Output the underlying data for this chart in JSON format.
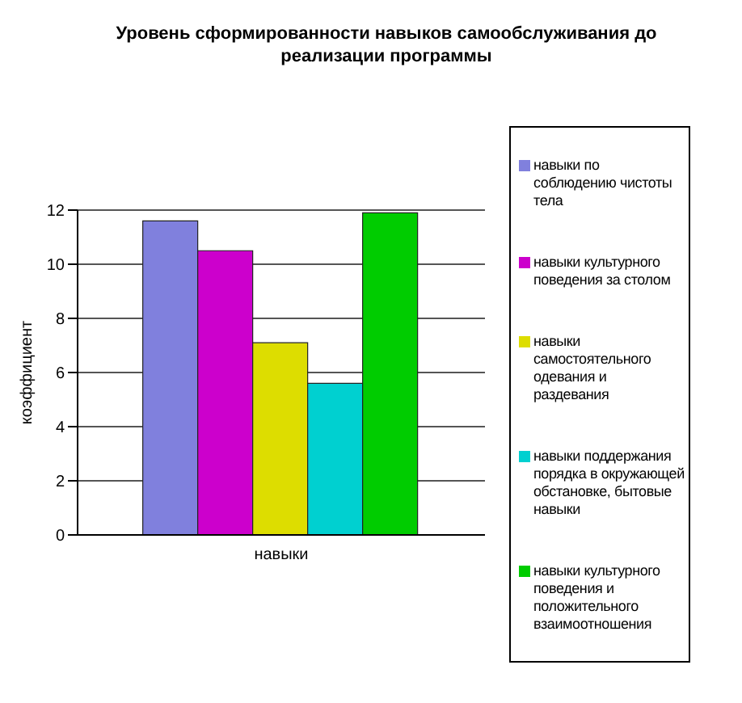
{
  "chart_data": {
    "type": "bar",
    "title": "Уровень сформированности навыков самообслуживания до реализации программы",
    "categories": [
      "навыки"
    ],
    "ylabel": "коэффициент",
    "series": [
      {
        "name": "навыки по соблюдению чистоты тела",
        "color": "#8080dd",
        "values": [
          11.6
        ]
      },
      {
        "name": "навыки культурного поведения за столом",
        "color": "#cc00cc",
        "values": [
          10.5
        ]
      },
      {
        "name": "навыки самостоятельного одевания и раздевания",
        "color": "#dddd00",
        "values": [
          7.1
        ]
      },
      {
        "name": "навыки поддержания порядка в окружающей обстановке, бытовые навыки",
        "color": "#00d0d0",
        "values": [
          5.6
        ]
      },
      {
        "name": "навыки культурного поведения и положительного взаимоотношения",
        "color": "#00cc00",
        "values": [
          11.9
        ]
      }
    ],
    "ylim": [
      0,
      12
    ],
    "yticks": [
      0,
      2,
      4,
      6,
      8,
      10,
      12
    ],
    "grid": "y",
    "legend": "right"
  }
}
